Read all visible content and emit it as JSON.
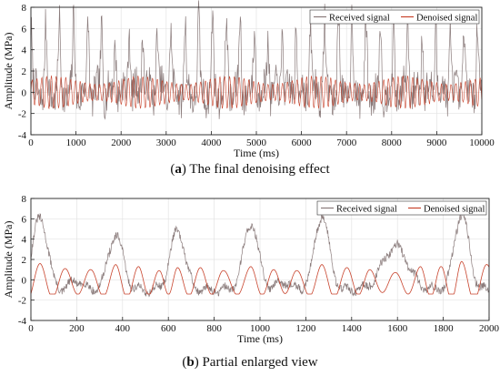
{
  "captions": [
    {
      "letter": "a",
      "text": "The final denoising effect"
    },
    {
      "letter": "b",
      "text": "Partial enlarged view"
    }
  ],
  "colors": {
    "received": "#8a7b7b",
    "denoised": "#c8442d",
    "grid": "#e3e3e3",
    "axis": "#222222"
  },
  "chart_data": [
    {
      "type": "line",
      "xlabel": "Time (ms)",
      "ylabel": "Amplitude (MPa)",
      "xlim": [
        0,
        10000
      ],
      "ylim": [
        -4,
        8
      ],
      "xticks": [
        0,
        1000,
        2000,
        3000,
        4000,
        5000,
        6000,
        7000,
        8000,
        9000,
        10000
      ],
      "yticks": [
        -4,
        -2,
        0,
        2,
        4,
        6,
        8
      ],
      "grid": true,
      "legend_position": "top-right",
      "series": [
        {
          "name": "Received signal",
          "color": "#8a7b7b",
          "description_points": {
            "x": [
              0,
              330,
              630,
              950,
              1270,
              1570,
              1870,
              2180,
              2480,
              2800,
              3100,
              3420,
              3720,
              4030,
              4340,
              4640,
              4960,
              5260,
              5580,
              5880,
              6200,
              6510,
              6820,
              7120,
              7430,
              7750,
              8050,
              8360,
              8680,
              8980,
              9300,
              9600,
              9900
            ],
            "peak": [
              5.8,
              5.2,
              5.6,
              6.3,
              6.1,
              5.9,
              4.5,
              6.4,
              5.9,
              6.0,
              5.7,
              5.8,
              6.2,
              5.9,
              6.1,
              6.4,
              5.5,
              5.4,
              5.8,
              5.6,
              6.2,
              6.6,
              6.7,
              5.9,
              5.5,
              6.1,
              5.4,
              6.2,
              6.1,
              6.3,
              5.9,
              5.6,
              6.4
            ]
          }
        },
        {
          "name": "Denoised signal",
          "color": "#c8442d",
          "amplitude": 1.5
        }
      ]
    },
    {
      "type": "line",
      "xlabel": "Time (ms)",
      "ylabel": "Amplitude (MPa)",
      "xlim": [
        0,
        2000
      ],
      "ylim": [
        -4,
        8
      ],
      "xticks": [
        0,
        200,
        400,
        600,
        800,
        1000,
        1200,
        1400,
        1600,
        1800,
        2000
      ],
      "yticks": [
        -4,
        -2,
        0,
        2,
        4,
        6,
        8
      ],
      "grid": true,
      "legend_position": "top-right",
      "series": [
        {
          "name": "Received signal",
          "color": "#8a7b7b",
          "peaks": {
            "x": [
              40,
              370,
              640,
              960,
              1270,
              1590,
              1880
            ],
            "y": [
              6.2,
              4.4,
              4.8,
              5.6,
              6.3,
              3.3,
              6.5
            ]
          }
        },
        {
          "name": "Denoised signal",
          "color": "#c8442d",
          "peaks": {
            "x": [
              40,
              150,
              260,
              370,
              470,
              560,
              640,
              740,
              840,
              960,
              1060,
              1160,
              1270,
              1380,
              1480,
              1590,
              1700,
              1790,
              1880,
              1990
            ],
            "y": [
              1.6,
              1.1,
              1.0,
              1.5,
              1.3,
              0.9,
              1.2,
              1.2,
              0.9,
              1.3,
              1.0,
              0.9,
              1.5,
              1.2,
              1.0,
              0.7,
              1.3,
              1.3,
              1.8,
              1.5
            ]
          }
        }
      ]
    }
  ]
}
